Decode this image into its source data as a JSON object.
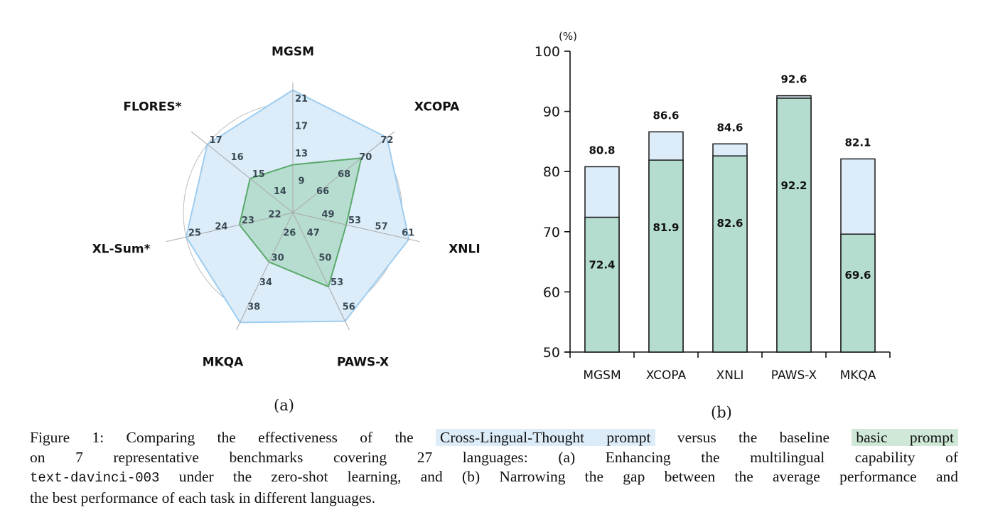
{
  "chart_data": [
    {
      "type": "radar",
      "panel_label": "(a)",
      "axes": [
        "MGSM",
        "XCOPA",
        "XNLI",
        "PAWS-X",
        "MKQA",
        "XL-Sum*",
        "FLORES*"
      ],
      "axis_ticks": {
        "MGSM": [
          9,
          13,
          17,
          21
        ],
        "XCOPA": [
          66,
          68,
          70,
          72
        ],
        "XNLI": [
          49,
          53,
          57,
          61
        ],
        "PAWS-X": [
          47,
          50,
          53,
          56
        ],
        "MKQA": [
          26,
          30,
          34,
          38
        ],
        "XL-Sum*": [
          22,
          23,
          24,
          25
        ],
        "FLORES*": [
          14,
          15,
          16,
          17
        ]
      },
      "series": [
        {
          "name": "Cross-Lingual-Thought prompt",
          "color": "#9ecdf0",
          "fill": "#dcecf9",
          "values": [
            22.9,
            72.8,
            62.4,
            57.2,
            39.8,
            25.0,
            17.0
          ]
        },
        {
          "name": "basic prompt",
          "color": "#5aaa6a",
          "fill": "#b4dccf",
          "values": [
            12.0,
            70.4,
            53.0,
            53.0,
            30.0,
            23.0,
            15.0
          ]
        }
      ],
      "grid": true
    },
    {
      "type": "bar",
      "panel_label": "(b)",
      "unit_label": "(%)",
      "categories": [
        "MGSM",
        "XCOPA",
        "XNLI",
        "PAWS-X",
        "MKQA"
      ],
      "series": [
        {
          "name": "best performance",
          "color": "#dcecf9",
          "values": [
            80.8,
            86.6,
            84.6,
            92.6,
            82.1
          ]
        },
        {
          "name": "average performance",
          "color": "#b4dccf",
          "values": [
            72.4,
            81.9,
            82.6,
            92.2,
            69.6
          ]
        }
      ],
      "ylim": [
        50,
        100
      ],
      "yticks": [
        50,
        60,
        70,
        80,
        90,
        100
      ],
      "xlabel": "",
      "ylabel": "(%)",
      "stacked_overlay": true
    }
  ],
  "caption": {
    "prefix": "Figure 1: Comparing the effectiveness of the",
    "highlight_clt": "Cross-Lingual-Thought prompt",
    "mid1": "versus the baseline",
    "highlight_basic": "basic prompt",
    "line2": "on 7 representative benchmarks covering 27 languages: (a) Enhancing the multilingual capability of",
    "model_name": "text-davinci-003",
    "line3_rest": "under the zero-shot learning, and (b) Narrowing the gap between the average performance and",
    "line4": "the best performance of each task in different languages."
  },
  "colors": {
    "clt_highlight": "#dcecf9",
    "basic_highlight": "#cfe8d8"
  }
}
